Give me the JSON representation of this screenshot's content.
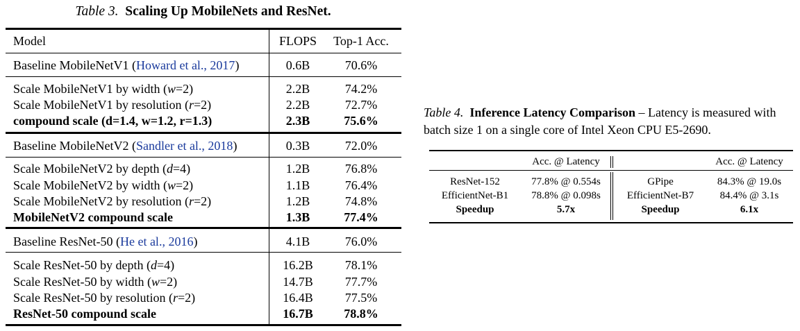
{
  "table3": {
    "caption_label": "Table 3.",
    "caption_title": "Scaling Up MobileNets and ResNet.",
    "headers": {
      "model": "Model",
      "flops": "FLOPS",
      "acc": "Top-1 Acc."
    },
    "groups": [
      {
        "baseline": {
          "model_text": "Baseline MobileNetV1 (",
          "cite": "Howard et al., 2017",
          "model_end": ")",
          "flops": "0.6B",
          "acc": "70.6%"
        },
        "rows": [
          {
            "pre": "Scale MobileNetV1 by width (",
            "var": "w",
            "post": "=2)",
            "flops": "2.2B",
            "acc": "74.2%"
          },
          {
            "pre": "Scale MobileNetV1 by resolution (",
            "var": "r",
            "post": "=2)",
            "flops": "2.2B",
            "acc": "72.7%"
          }
        ],
        "compound": {
          "label": "compound scale (d=1.4, w=1.2, r=1.3)",
          "flops": "2.3B",
          "acc": "75.6%"
        }
      },
      {
        "baseline": {
          "model_text": "Baseline MobileNetV2 (",
          "cite": "Sandler et al., 2018",
          "model_end": ")",
          "flops": "0.3B",
          "acc": "72.0%"
        },
        "rows": [
          {
            "pre": "Scale MobileNetV2 by depth (",
            "var": "d",
            "post": "=4)",
            "flops": "1.2B",
            "acc": "76.8%"
          },
          {
            "pre": "Scale MobileNetV2 by width (",
            "var": "w",
            "post": "=2)",
            "flops": "1.1B",
            "acc": "76.4%"
          },
          {
            "pre": "Scale MobileNetV2 by resolution (",
            "var": "r",
            "post": "=2)",
            "flops": "1.2B",
            "acc": "74.8%"
          }
        ],
        "compound": {
          "label": "MobileNetV2 compound scale",
          "flops": "1.3B",
          "acc": "77.4%"
        }
      },
      {
        "baseline": {
          "model_text": "Baseline ResNet-50 (",
          "cite": "He et al., 2016",
          "model_end": ")",
          "flops": "4.1B",
          "acc": "76.0%"
        },
        "rows": [
          {
            "pre": "Scale ResNet-50 by depth (",
            "var": "d",
            "post": "=4)",
            "flops": "16.2B",
            "acc": "78.1%"
          },
          {
            "pre": "Scale ResNet-50 by width (",
            "var": "w",
            "post": "=2)",
            "flops": "14.7B",
            "acc": "77.7%"
          },
          {
            "pre": "Scale ResNet-50 by resolution (",
            "var": "r",
            "post": "=2)",
            "flops": "16.4B",
            "acc": "77.5%"
          }
        ],
        "compound": {
          "label": "ResNet-50 compound scale",
          "flops": "16.7B",
          "acc": "78.8%"
        }
      }
    ]
  },
  "table4": {
    "caption_label": "Table 4.",
    "caption_title": "Inference Latency Comparison",
    "caption_dash": " – ",
    "caption_text": "Latency is measured with batch size 1 on a single core of Intel Xeon CPU E5-2690.",
    "headers": {
      "left": "Acc. @ Latency",
      "right": "Acc. @ Latency"
    },
    "rows": [
      {
        "m1": "ResNet-152",
        "v1": "77.8% @ 0.554s",
        "m2": "GPipe",
        "v2": "84.3% @ 19.0s"
      },
      {
        "m1": "EfficientNet-B1",
        "v1": "78.8% @ 0.098s",
        "m2": "EfficientNet-B7",
        "v2": "84.4% @ 3.1s"
      }
    ],
    "speedup": {
      "m1": "Speedup",
      "v1": "5.7x",
      "m2": "Speedup",
      "v2": "6.1x"
    }
  }
}
